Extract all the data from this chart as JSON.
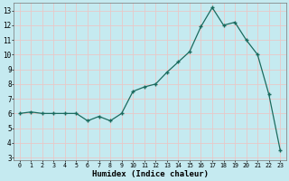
{
  "x": [
    0,
    1,
    2,
    3,
    4,
    5,
    6,
    7,
    8,
    9,
    10,
    11,
    12,
    13,
    14,
    15,
    16,
    17,
    18,
    19,
    20,
    21,
    22,
    23
  ],
  "y": [
    6.0,
    6.1,
    6.0,
    6.0,
    6.0,
    6.0,
    5.5,
    5.8,
    5.5,
    6.0,
    7.5,
    7.8,
    8.0,
    8.8,
    9.5,
    10.2,
    11.9,
    13.2,
    12.0,
    12.2,
    11.0,
    10.0,
    7.3,
    3.5
  ],
  "line_color": "#1a6b5e",
  "bg_color": "#c5eaf0",
  "grid_color": "#e8c8c8",
  "xlabel": "Humidex (Indice chaleur)",
  "ylim": [
    2.8,
    13.5
  ],
  "xlim": [
    -0.5,
    23.5
  ],
  "yticks": [
    3,
    4,
    5,
    6,
    7,
    8,
    9,
    10,
    11,
    12,
    13
  ],
  "xticks": [
    0,
    1,
    2,
    3,
    4,
    5,
    6,
    7,
    8,
    9,
    10,
    11,
    12,
    13,
    14,
    15,
    16,
    17,
    18,
    19,
    20,
    21,
    22,
    23
  ],
  "xlabel_fontsize": 6.5,
  "tick_fontsize_x": 4.8,
  "tick_fontsize_y": 5.5
}
